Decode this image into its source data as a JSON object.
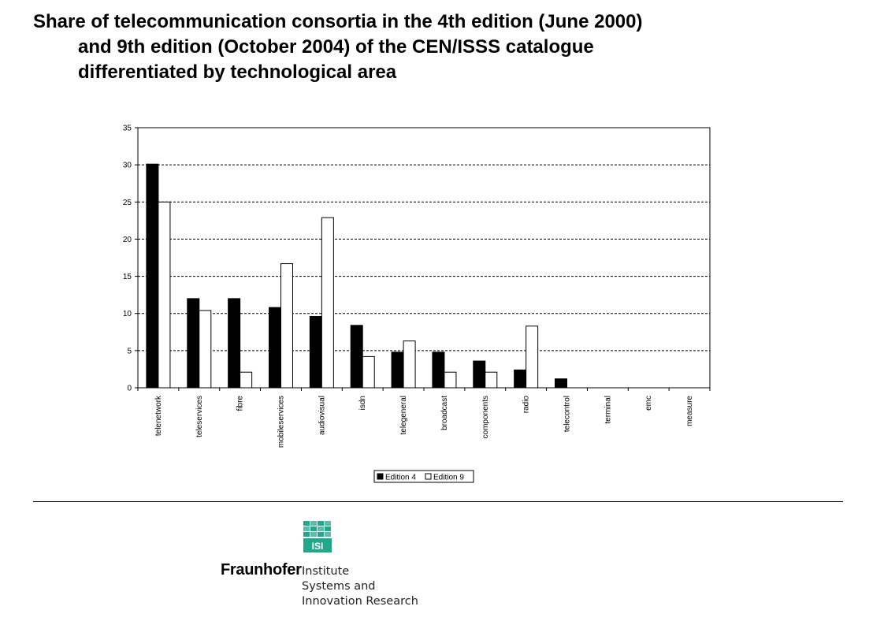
{
  "page": {
    "title_lines": [
      "Share of telecommunication consortia in the 4th edition (June 2000)",
      "and 9th edition (October 2004) of the CEN/ISSS catalogue",
      "differentiated by technological area"
    ]
  },
  "chart_data": {
    "type": "bar",
    "categories": [
      "telenetwork",
      "teleservices",
      "fibre",
      "mobileservices",
      "audiovisual",
      "isdn",
      "telegeneral",
      "broadcast",
      "components",
      "radio",
      "telecontrol",
      "terminal",
      "emc",
      "measure"
    ],
    "series": [
      {
        "name": "Edition 4",
        "values": [
          30.1,
          12.0,
          12.0,
          10.8,
          9.6,
          8.4,
          4.8,
          4.8,
          3.6,
          2.4,
          1.2,
          0,
          0,
          0
        ],
        "color": "#000000"
      },
      {
        "name": "Edition 9",
        "values": [
          25.0,
          10.4,
          2.1,
          16.7,
          22.9,
          4.2,
          6.3,
          2.1,
          2.1,
          8.3,
          0,
          0,
          0,
          0
        ],
        "color": "#ffffff"
      }
    ],
    "ylim": [
      0,
      35
    ],
    "yticks": [
      0,
      5,
      10,
      15,
      20,
      25,
      30,
      35
    ],
    "grid": "dashed horizontal",
    "legend": "bottom-center"
  },
  "logo": {
    "wordmark": "Fraunhofer",
    "icon_text": "ISI",
    "institute_lines": [
      "Institute",
      "Systems and",
      "Innovation Research"
    ],
    "color": "#1fa98a"
  }
}
